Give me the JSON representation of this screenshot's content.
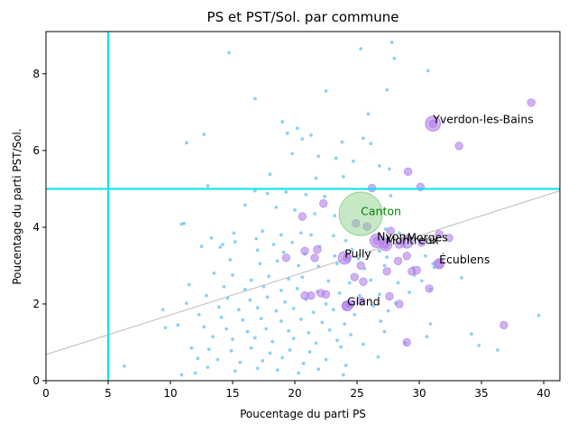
{
  "chart_data": {
    "type": "scatter",
    "title": "PS et PST/Sol. par commune",
    "xlabel": "Poucentage du parti PS",
    "ylabel": "Poucentage du parti PST/Sol.",
    "xlim": [
      0,
      41.3
    ],
    "ylim": [
      0,
      9.1
    ],
    "xticks": [
      "0",
      "5",
      "10",
      "15",
      "20",
      "25",
      "30",
      "35",
      "40"
    ],
    "yticks": [
      "0",
      "2",
      "4",
      "6",
      "8"
    ],
    "grid": false,
    "reference_lines": {
      "vertical_x": 5,
      "horizontal_y": 5,
      "line_color": "#00e5ee"
    },
    "trend_line": {
      "from": [
        0,
        0.68
      ],
      "to": [
        41.3,
        4.95
      ],
      "color": "#bbbbbb"
    },
    "colors": {
      "small": "#6ec6f7",
      "large": "#b07ee8",
      "canton": "#8fd18f",
      "canton_label": "#008000"
    },
    "points": [
      [
        25.3,
        8.65
      ],
      [
        27.8,
        8.82
      ],
      [
        28.0,
        8.4
      ],
      [
        30.7,
        8.08
      ],
      [
        14.7,
        8.55
      ],
      [
        16.8,
        7.35
      ],
      [
        22.5,
        7.55
      ],
      [
        27.4,
        7.58
      ],
      [
        25.9,
        6.95
      ],
      [
        19.0,
        6.75
      ],
      [
        20.2,
        6.58
      ],
      [
        19.4,
        6.45
      ],
      [
        20.6,
        6.3
      ],
      [
        21.3,
        6.4
      ],
      [
        23.8,
        6.22
      ],
      [
        25.5,
        6.32
      ],
      [
        26.1,
        6.18
      ],
      [
        12.7,
        6.42
      ],
      [
        11.3,
        6.2
      ],
      [
        19.8,
        5.92
      ],
      [
        21.9,
        5.85
      ],
      [
        23.3,
        5.8
      ],
      [
        24.7,
        5.72
      ],
      [
        26.8,
        5.6
      ],
      [
        27.6,
        5.52
      ],
      [
        18.0,
        5.38
      ],
      [
        21.7,
        5.28
      ],
      [
        23.9,
        5.32
      ],
      [
        13.0,
        5.08
      ],
      [
        16.8,
        4.95
      ],
      [
        17.8,
        4.88
      ],
      [
        19.3,
        4.92
      ],
      [
        20.9,
        4.85
      ],
      [
        22.4,
        4.8
      ],
      [
        27.7,
        4.82
      ],
      [
        16.0,
        4.58
      ],
      [
        18.5,
        4.52
      ],
      [
        20.0,
        4.45
      ],
      [
        21.6,
        4.35
      ],
      [
        23.2,
        4.3
      ],
      [
        10.9,
        4.08
      ],
      [
        15.1,
        3.85
      ],
      [
        17.4,
        3.9
      ],
      [
        18.9,
        3.8
      ],
      [
        20.5,
        3.85
      ],
      [
        21.3,
        3.8
      ],
      [
        23.1,
        3.78
      ],
      [
        24.1,
        3.65
      ],
      [
        27.3,
        3.95
      ],
      [
        28.4,
        3.85
      ],
      [
        13.3,
        3.72
      ],
      [
        15.2,
        3.62
      ],
      [
        16.9,
        3.7
      ],
      [
        18.3,
        3.55
      ],
      [
        19.8,
        3.6
      ],
      [
        22.0,
        3.5
      ],
      [
        24.6,
        3.42
      ],
      [
        26.8,
        3.38
      ],
      [
        28.8,
        3.52
      ],
      [
        12.5,
        3.5
      ],
      [
        14.0,
        3.48
      ],
      [
        17.0,
        3.4
      ],
      [
        19.1,
        3.35
      ],
      [
        20.8,
        3.3
      ],
      [
        23.2,
        3.25
      ],
      [
        25.1,
        3.18
      ],
      [
        27.4,
        3.22
      ],
      [
        30.5,
        3.25
      ],
      [
        14.8,
        3.15
      ],
      [
        17.2,
        3.05
      ],
      [
        18.6,
        3.12
      ],
      [
        20.3,
        3.0
      ],
      [
        21.9,
        2.98
      ],
      [
        23.4,
        3.05
      ],
      [
        25.6,
        2.92
      ],
      [
        27.2,
        3.0
      ],
      [
        29.5,
        2.95
      ],
      [
        31.1,
        3.05
      ],
      [
        13.5,
        2.8
      ],
      [
        15.0,
        2.75
      ],
      [
        16.5,
        2.62
      ],
      [
        17.9,
        2.72
      ],
      [
        19.5,
        2.65
      ],
      [
        20.6,
        2.7
      ],
      [
        22.7,
        2.6
      ],
      [
        24.4,
        2.55
      ],
      [
        26.1,
        2.62
      ],
      [
        28.3,
        2.55
      ],
      [
        29.6,
        2.75
      ],
      [
        33.4,
        2.68
      ],
      [
        11.5,
        2.5
      ],
      [
        14.3,
        2.45
      ],
      [
        16.0,
        2.38
      ],
      [
        17.5,
        2.45
      ],
      [
        18.9,
        2.35
      ],
      [
        20.2,
        2.4
      ],
      [
        21.8,
        2.32
      ],
      [
        23.6,
        2.28
      ],
      [
        25.2,
        2.22
      ],
      [
        26.8,
        2.25
      ],
      [
        29.2,
        2.3
      ],
      [
        30.9,
        2.38
      ],
      [
        12.9,
        2.22
      ],
      [
        14.6,
        2.15
      ],
      [
        16.4,
        2.1
      ],
      [
        17.8,
        2.18
      ],
      [
        19.2,
        2.05
      ],
      [
        20.9,
        2.12
      ],
      [
        22.5,
        2.0
      ],
      [
        24.3,
        2.05
      ],
      [
        26.3,
        1.95
      ],
      [
        28.1,
        2.02
      ],
      [
        11.3,
        2.02
      ],
      [
        13.9,
        1.92
      ],
      [
        15.5,
        1.85
      ],
      [
        17.0,
        1.9
      ],
      [
        18.5,
        1.82
      ],
      [
        19.9,
        1.88
      ],
      [
        21.5,
        1.78
      ],
      [
        23.1,
        1.85
      ],
      [
        24.8,
        1.72
      ],
      [
        27.5,
        1.82
      ],
      [
        9.4,
        1.85
      ],
      [
        12.3,
        1.72
      ],
      [
        14.1,
        1.65
      ],
      [
        15.8,
        1.58
      ],
      [
        17.3,
        1.62
      ],
      [
        18.9,
        1.55
      ],
      [
        20.5,
        1.6
      ],
      [
        22.2,
        1.52
      ],
      [
        24.0,
        1.48
      ],
      [
        26.9,
        1.55
      ],
      [
        30.9,
        1.48
      ],
      [
        10.6,
        1.45
      ],
      [
        12.7,
        1.4
      ],
      [
        14.5,
        1.35
      ],
      [
        16.2,
        1.28
      ],
      [
        17.7,
        1.35
      ],
      [
        19.5,
        1.3
      ],
      [
        21.1,
        1.25
      ],
      [
        22.8,
        1.32
      ],
      [
        24.5,
        1.2
      ],
      [
        27.2,
        1.28
      ],
      [
        9.6,
        1.38
      ],
      [
        13.4,
        1.15
      ],
      [
        15.0,
        1.08
      ],
      [
        16.8,
        1.12
      ],
      [
        18.2,
        1.02
      ],
      [
        19.9,
        1.1
      ],
      [
        21.7,
        0.98
      ],
      [
        23.4,
        1.05
      ],
      [
        25.5,
        0.95
      ],
      [
        30.6,
        1.15
      ],
      [
        34.2,
        1.22
      ],
      [
        11.7,
        0.85
      ],
      [
        13.1,
        0.82
      ],
      [
        14.9,
        0.78
      ],
      [
        16.5,
        0.85
      ],
      [
        18.0,
        0.72
      ],
      [
        19.6,
        0.8
      ],
      [
        21.2,
        0.75
      ],
      [
        23.7,
        0.88
      ],
      [
        34.8,
        0.92
      ],
      [
        36.3,
        0.8
      ],
      [
        12.2,
        0.58
      ],
      [
        13.8,
        0.55
      ],
      [
        15.6,
        0.48
      ],
      [
        17.4,
        0.52
      ],
      [
        19.0,
        0.6
      ],
      [
        20.7,
        0.45
      ],
      [
        22.5,
        0.55
      ],
      [
        24.1,
        0.4
      ],
      [
        26.7,
        0.62
      ],
      [
        13.0,
        0.35
      ],
      [
        15.2,
        0.25
      ],
      [
        17.0,
        0.32
      ],
      [
        18.6,
        0.28
      ],
      [
        20.3,
        0.2
      ],
      [
        21.9,
        0.3
      ],
      [
        23.9,
        0.15
      ],
      [
        6.3,
        0.38
      ],
      [
        10.9,
        0.15
      ],
      [
        12.0,
        0.2
      ],
      [
        39.6,
        1.7
      ],
      [
        11.1,
        4.1
      ],
      [
        14.2,
        3.55
      ],
      [
        31.2,
        2.95
      ],
      [
        28.9,
        0.98
      ],
      [
        30.2,
        2.6
      ]
    ],
    "large_points": [
      [
        26.2,
        5.02
      ],
      [
        29.1,
        5.45
      ],
      [
        30.1,
        5.05
      ],
      [
        33.2,
        6.12
      ],
      [
        39.0,
        7.25
      ],
      [
        31.1,
        6.7
      ],
      [
        22.3,
        4.62
      ],
      [
        20.6,
        4.28
      ],
      [
        24.9,
        4.1
      ],
      [
        25.8,
        4.02
      ],
      [
        27.7,
        3.9
      ],
      [
        28.4,
        3.55
      ],
      [
        30.2,
        3.6
      ],
      [
        31.6,
        3.82
      ],
      [
        32.4,
        3.72
      ],
      [
        26.6,
        3.65
      ],
      [
        27.3,
        3.55
      ],
      [
        29.0,
        3.25
      ],
      [
        31.6,
        3.05
      ],
      [
        21.8,
        3.42
      ],
      [
        20.8,
        3.38
      ],
      [
        19.3,
        3.2
      ],
      [
        21.6,
        3.2
      ],
      [
        24.2,
        3.2
      ],
      [
        25.3,
        3.0
      ],
      [
        27.4,
        2.85
      ],
      [
        28.3,
        3.12
      ],
      [
        24.8,
        2.7
      ],
      [
        25.5,
        2.58
      ],
      [
        29.8,
        2.88
      ],
      [
        29.4,
        2.85
      ],
      [
        30.8,
        2.4
      ],
      [
        20.8,
        2.22
      ],
      [
        21.3,
        2.22
      ],
      [
        22.1,
        2.28
      ],
      [
        22.5,
        2.25
      ],
      [
        25.3,
        2.08
      ],
      [
        27.6,
        2.2
      ],
      [
        28.4,
        2.0
      ],
      [
        24.1,
        1.95
      ],
      [
        24.5,
        2.0
      ],
      [
        36.8,
        1.45
      ],
      [
        29.0,
        1.0
      ]
    ],
    "annotations": [
      {
        "label": "Yverdon-les-Bains",
        "x": 31.1,
        "y": 6.7,
        "size": 11
      },
      {
        "label": "Nyon",
        "x": 26.6,
        "y": 3.65,
        "size": 10
      },
      {
        "label": "Morges",
        "x": 29.0,
        "y": 3.62,
        "size": 9
      },
      {
        "label": "Montreux",
        "x": 27.3,
        "y": 3.55,
        "size": 9
      },
      {
        "label": "Écublens",
        "x": 31.6,
        "y": 3.05,
        "size": 7
      },
      {
        "label": "Pully",
        "x": 24.0,
        "y": 3.2,
        "size": 9
      },
      {
        "label": "Gland",
        "x": 24.2,
        "y": 1.95,
        "size": 7
      }
    ],
    "canton": {
      "label": "Canton",
      "x": 25.3,
      "y": 4.35
    }
  }
}
